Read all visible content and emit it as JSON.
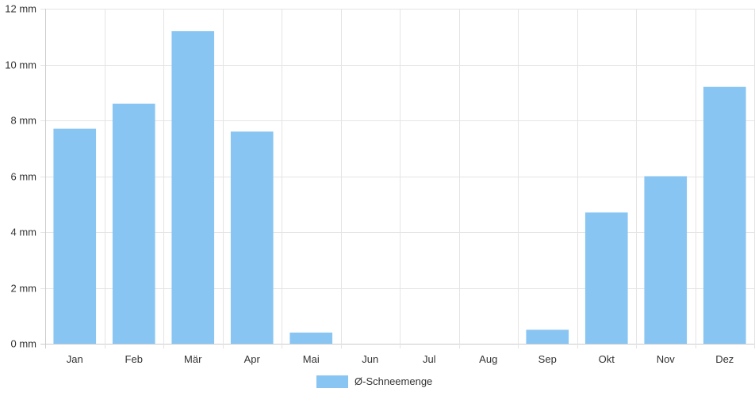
{
  "chart_data": {
    "type": "bar",
    "categories": [
      "Jan",
      "Feb",
      "Mär",
      "Apr",
      "Mai",
      "Jun",
      "Jul",
      "Aug",
      "Sep",
      "Okt",
      "Nov",
      "Dez"
    ],
    "series": [
      {
        "name": "Ø-Schneemenge",
        "values": [
          7.7,
          8.6,
          11.2,
          7.6,
          0.4,
          0,
          0,
          0,
          0.5,
          4.7,
          6.0,
          9.2
        ]
      }
    ],
    "ylim": [
      0,
      12
    ],
    "yticks": [
      0,
      2,
      4,
      6,
      8,
      10,
      12
    ],
    "ytick_labels": [
      "0 mm",
      "2 mm",
      "4 mm",
      "6 mm",
      "8 mm",
      "10 mm",
      "12 mm"
    ],
    "grid": true,
    "legend_position": "bottom",
    "colors": {
      "bar": "#88c5f2",
      "grid": "#e4e4e4",
      "axis": "#cccccc"
    }
  }
}
